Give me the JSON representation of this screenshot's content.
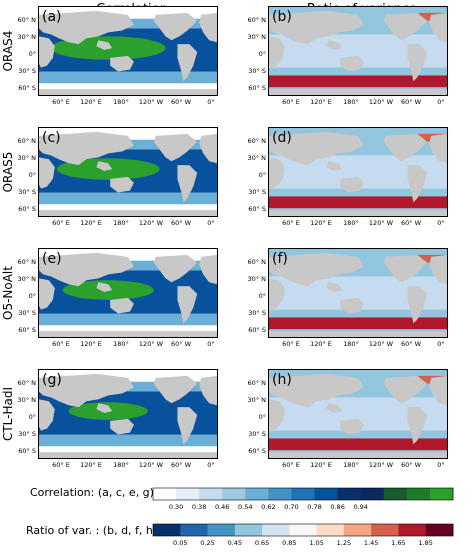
{
  "column_titles": [
    "Correlation",
    "Ratio of variance"
  ],
  "rows": [
    {
      "name": "ORAS4",
      "left_label": "(a)",
      "right_label": "(b)"
    },
    {
      "name": "ORAS5",
      "left_label": "(c)",
      "right_label": "(d)"
    },
    {
      "name": "O5-NoAlt",
      "left_label": "(e)",
      "right_label": "(f)"
    },
    {
      "name": "CTL-HadI",
      "left_label": "(g)",
      "right_label": "(h)"
    }
  ],
  "lat_ticks": [
    "60° N",
    "30° N",
    "0°",
    "30° S",
    "60° S"
  ],
  "lon_ticks": [
    "60° E",
    "120° E",
    "180°",
    "120° W",
    "60° W",
    "0°"
  ],
  "colorbars": {
    "correlation": {
      "label": "Correlation: (a, c, e, g)",
      "ticks": [
        "0.30",
        "0.38",
        "0.46",
        "0.54",
        "0.62",
        "0.70",
        "0.78",
        "0.86",
        "0.94"
      ],
      "colors": [
        "#ffffff",
        "#e4eef9",
        "#c6dbef",
        "#9ecae1",
        "#6baed6",
        "#4292c6",
        "#2171b5",
        "#08519c",
        "#08306b",
        "#0a2a5e",
        "#1a5b2c",
        "#1f7a2a",
        "#2ca02c"
      ]
    },
    "ratio": {
      "label": "Ratio of var. : (b, d, f, h)",
      "ticks": [
        "0.05",
        "0.25",
        "0.45",
        "0.65",
        "0.85",
        "1.05",
        "1.25",
        "1.45",
        "1.65",
        "1.85"
      ],
      "colors": [
        "#08306b",
        "#2166ac",
        "#4393c3",
        "#92c5de",
        "#d1e5f0",
        "#f7f7f7",
        "#fddbc7",
        "#f4a582",
        "#d6604d",
        "#b2182b",
        "#67001f"
      ]
    }
  },
  "colors": {
    "land": "#c8c8c8",
    "ocean_light": "#ffffff",
    "corr_high": "#2ca02c",
    "corr_mid": "#08519c",
    "ratio_low": "#4393c3",
    "ratio_high": "#b2182b"
  }
}
